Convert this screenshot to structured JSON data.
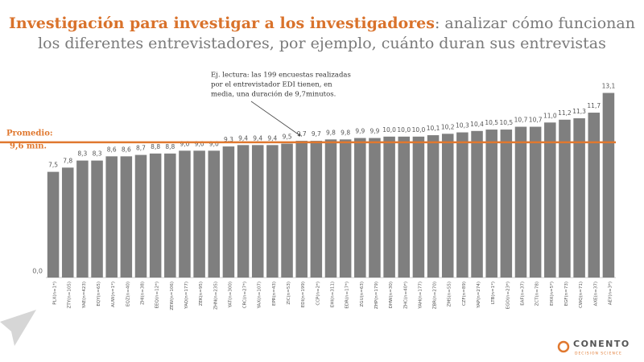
{
  "chart_data": {
    "type": "bar",
    "title": "Investigación para investigar a los investigadores",
    "subtitle": [
      ": analizar cómo funcionan",
      "los diferentes entrevistadores, por ejemplo, cuánto duran sus entrevistas"
    ],
    "annotation": [
      "Ej. lectura: las 199 encuestas realizadas",
      "por el entrevistador EDI tienen, en",
      "media, una duración de 9,7minutos."
    ],
    "average": 9.6,
    "average_label": [
      "Promedio:",
      "9,6 min."
    ],
    "average_color": "#e0782f",
    "color": "#7f7f7f",
    "categories": [
      "PLX(n=1*)",
      "ZTY(n=105)",
      "YAE(n=423)",
      "EQY(n=65)",
      "AUW(n=1*)",
      "EQZ(n=40)",
      "ZHI(n=38)",
      "EEQ(n=12*)",
      "ZEW(n=106)",
      "YAQ(n=177)",
      "ZEK(n=95)",
      "ZHN(n=235)",
      "YAT(n=300)",
      "CRC(n=27*)",
      "YAX(n=107)",
      "EPR(n=43)",
      "ZIC(n=53)",
      "EDI(n=199)",
      "CCP(n=2*)",
      "EHI(n=311)",
      "EDR(n=17*)",
      "ZGU(n=63)",
      "ZHP(n=179)",
      "DHW(n=30)",
      "ZHC(n=40*)",
      "YAH(n=177)",
      "ZBR(n=270)",
      "ZMS(n=55)",
      "CZF(n=89)",
      "YAP(n=274)",
      "LTB(n=1*)",
      "EGO(n=23*)",
      "EAF(n=37)",
      "ZCT(n=78)",
      "EHX(n=5*)",
      "EGF(n=73)",
      "CWQ(n=71)",
      "AXE(n=37)",
      "AEY(n=3*)"
    ],
    "values": [
      7.5,
      7.8,
      8.3,
      8.3,
      8.6,
      8.6,
      8.7,
      8.8,
      8.8,
      9.0,
      9.0,
      9.0,
      9.3,
      9.4,
      9.4,
      9.4,
      9.5,
      9.7,
      9.7,
      9.8,
      9.8,
      9.9,
      9.9,
      10.0,
      10.0,
      10.0,
      10.1,
      10.2,
      10.3,
      10.4,
      10.5,
      10.5,
      10.7,
      10.7,
      11.0,
      11.2,
      11.3,
      11.7,
      13.1
    ],
    "value_labels": [
      "7,5",
      "7,8",
      "8,3",
      "8,3",
      "8,6",
      "8,6",
      "8,7",
      "8,8",
      "8,8",
      "9,0",
      "9,0",
      "9,0",
      "9,3",
      "9,4",
      "9,4",
      "9,4",
      "9,5",
      "9,7",
      "9,7",
      "9,8",
      "9,8",
      "9,9",
      "9,9",
      "10,0",
      "10,0",
      "10,0",
      "10,1",
      "10,2",
      "10,3",
      "10,4",
      "10,5",
      "10,5",
      "10,7",
      "10,7",
      "11,0",
      "11,2",
      "11,3",
      "11,7",
      "13,1"
    ],
    "ylim": [
      0,
      13.7
    ],
    "yticks": [
      {
        "value": 0,
        "label": "0,0"
      }
    ],
    "logo": [
      "CONENTO",
      "DECISION SCIENCE"
    ]
  }
}
